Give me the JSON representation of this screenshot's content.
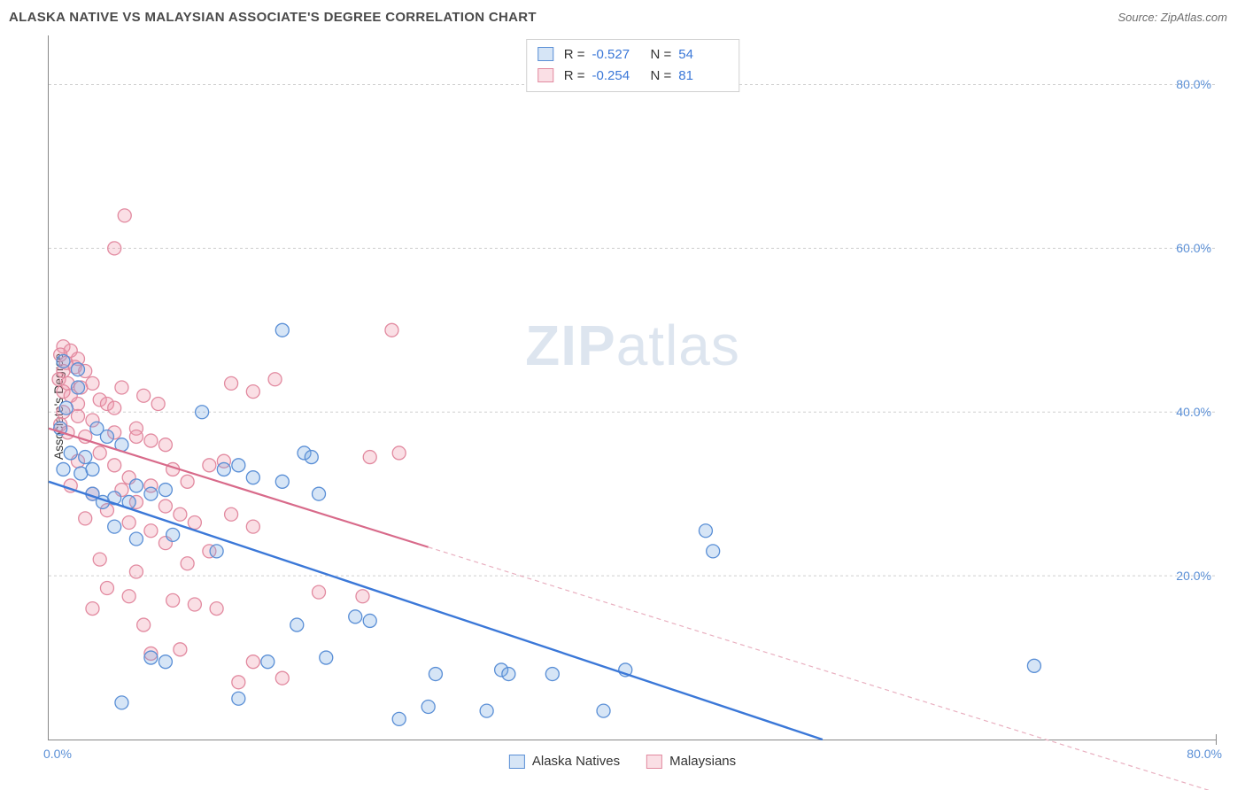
{
  "header": {
    "title": "ALASKA NATIVE VS MALAYSIAN ASSOCIATE'S DEGREE CORRELATION CHART",
    "source_prefix": "Source: ",
    "source_name": "ZipAtlas.com"
  },
  "watermark": {
    "zip": "ZIP",
    "atlas": "atlas"
  },
  "chart": {
    "type": "scatter",
    "ylabel": "Associate's Degree",
    "xlim": [
      0,
      80
    ],
    "ylim": [
      0,
      86
    ],
    "y_ticks": [
      20,
      40,
      60,
      80
    ],
    "y_tick_labels": [
      "20.0%",
      "40.0%",
      "60.0%",
      "80.0%"
    ],
    "x_tick_left": "0.0%",
    "x_tick_right": "80.0%",
    "background_color": "#ffffff",
    "grid_color": "#cfcfcf",
    "axis_color": "#888888",
    "tick_label_color": "#5a8fd6",
    "marker_radius": 7.5,
    "marker_stroke_width": 1.3,
    "series": {
      "alaska": {
        "label": "Alaska Natives",
        "fill": "rgba(120,170,225,0.30)",
        "stroke": "#5a8fd6",
        "r_value": "-0.527",
        "n_value": "54",
        "trend": {
          "x1": 0,
          "y1": 31.5,
          "x2": 53,
          "y2": 0,
          "color": "#3b78d8",
          "width": 2.4,
          "dash": "none"
        },
        "points": [
          [
            1.0,
            46.2
          ],
          [
            2.0,
            43.0
          ],
          [
            2.0,
            45.2
          ],
          [
            1.2,
            40.5
          ],
          [
            0.8,
            38.0
          ],
          [
            1.5,
            35.0
          ],
          [
            2.5,
            34.5
          ],
          [
            1.0,
            33.0
          ],
          [
            2.2,
            32.5
          ],
          [
            3.0,
            30.0
          ],
          [
            3.7,
            29.0
          ],
          [
            4.5,
            29.5
          ],
          [
            5.5,
            29.0
          ],
          [
            3.3,
            38.0
          ],
          [
            4.0,
            37.0
          ],
          [
            5.0,
            36.0
          ],
          [
            3.0,
            33.0
          ],
          [
            6.0,
            31.0
          ],
          [
            7.0,
            30.0
          ],
          [
            8.0,
            30.5
          ],
          [
            4.5,
            26.0
          ],
          [
            6.0,
            24.5
          ],
          [
            8.5,
            25.0
          ],
          [
            10.5,
            40.0
          ],
          [
            16.0,
            50.0
          ],
          [
            12.0,
            33.0
          ],
          [
            13.0,
            33.5
          ],
          [
            14.0,
            32.0
          ],
          [
            17.5,
            35.0
          ],
          [
            16.0,
            31.5
          ],
          [
            18.0,
            34.5
          ],
          [
            18.5,
            30.0
          ],
          [
            7.0,
            10.0
          ],
          [
            8.0,
            9.5
          ],
          [
            15.0,
            9.5
          ],
          [
            11.5,
            23.0
          ],
          [
            5.0,
            4.5
          ],
          [
            21.0,
            15.0
          ],
          [
            26.0,
            4.0
          ],
          [
            17.0,
            14.0
          ],
          [
            22.0,
            14.5
          ],
          [
            19.0,
            10.0
          ],
          [
            24.0,
            2.5
          ],
          [
            26.5,
            8.0
          ],
          [
            30.0,
            3.5
          ],
          [
            31.0,
            8.5
          ],
          [
            31.5,
            8.0
          ],
          [
            34.5,
            8.0
          ],
          [
            38.0,
            3.5
          ],
          [
            39.5,
            8.5
          ],
          [
            45.0,
            25.5
          ],
          [
            45.5,
            23.0
          ],
          [
            67.5,
            9.0
          ],
          [
            13.0,
            5.0
          ]
        ]
      },
      "malaysian": {
        "label": "Malaysians",
        "fill": "rgba(240,150,170,0.30)",
        "stroke": "#e28aa0",
        "r_value": "-0.254",
        "n_value": "81",
        "trend_solid": {
          "x1": 0,
          "y1": 38.0,
          "x2": 26,
          "y2": 23.5,
          "color": "#d86a8a",
          "width": 2.2
        },
        "trend_dash": {
          "x1": 26,
          "y1": 23.5,
          "x2": 80,
          "y2": -6.5,
          "color": "#e9b0c0",
          "width": 1.2,
          "dash": "5 4"
        },
        "points": [
          [
            5.2,
            64.0
          ],
          [
            4.5,
            60.0
          ],
          [
            23.5,
            50.0
          ],
          [
            1.0,
            48.0
          ],
          [
            1.5,
            47.5
          ],
          [
            0.8,
            47.0
          ],
          [
            1.2,
            46.0
          ],
          [
            2.0,
            46.5
          ],
          [
            1.0,
            45.0
          ],
          [
            1.8,
            45.5
          ],
          [
            2.5,
            45.0
          ],
          [
            0.7,
            44.0
          ],
          [
            1.3,
            43.5
          ],
          [
            2.2,
            43.0
          ],
          [
            3.0,
            43.5
          ],
          [
            1.0,
            42.5
          ],
          [
            1.5,
            42.0
          ],
          [
            2.0,
            41.0
          ],
          [
            3.5,
            41.5
          ],
          [
            4.0,
            41.0
          ],
          [
            4.5,
            40.5
          ],
          [
            1.0,
            40.0
          ],
          [
            2.0,
            39.5
          ],
          [
            3.0,
            39.0
          ],
          [
            0.8,
            38.5
          ],
          [
            1.3,
            37.5
          ],
          [
            2.5,
            37.0
          ],
          [
            4.5,
            37.5
          ],
          [
            6.0,
            38.0
          ],
          [
            5.0,
            43.0
          ],
          [
            6.5,
            42.0
          ],
          [
            7.5,
            41.0
          ],
          [
            6.0,
            37.0
          ],
          [
            7.0,
            36.5
          ],
          [
            8.0,
            36.0
          ],
          [
            3.5,
            35.0
          ],
          [
            4.5,
            33.5
          ],
          [
            2.0,
            34.0
          ],
          [
            5.5,
            32.0
          ],
          [
            5.0,
            30.5
          ],
          [
            7.0,
            31.0
          ],
          [
            8.5,
            33.0
          ],
          [
            9.5,
            31.5
          ],
          [
            6.0,
            29.0
          ],
          [
            8.0,
            28.5
          ],
          [
            9.0,
            27.5
          ],
          [
            1.5,
            31.0
          ],
          [
            3.0,
            30.0
          ],
          [
            4.0,
            28.0
          ],
          [
            2.5,
            27.0
          ],
          [
            5.5,
            26.5
          ],
          [
            7.0,
            25.5
          ],
          [
            3.5,
            22.0
          ],
          [
            6.0,
            20.5
          ],
          [
            9.5,
            21.5
          ],
          [
            11.0,
            23.0
          ],
          [
            10.0,
            26.5
          ],
          [
            8.0,
            24.0
          ],
          [
            12.5,
            43.5
          ],
          [
            14.0,
            42.5
          ],
          [
            15.5,
            44.0
          ],
          [
            11.0,
            33.5
          ],
          [
            12.0,
            34.0
          ],
          [
            12.5,
            27.5
          ],
          [
            14.0,
            26.0
          ],
          [
            4.0,
            18.5
          ],
          [
            5.5,
            17.5
          ],
          [
            8.5,
            17.0
          ],
          [
            10.0,
            16.5
          ],
          [
            11.5,
            16.0
          ],
          [
            6.5,
            14.0
          ],
          [
            3.0,
            16.0
          ],
          [
            7.0,
            10.5
          ],
          [
            9.0,
            11.0
          ],
          [
            14.0,
            9.5
          ],
          [
            13.0,
            7.0
          ],
          [
            18.5,
            18.0
          ],
          [
            21.5,
            17.5
          ],
          [
            22.0,
            34.5
          ],
          [
            24.0,
            35.0
          ],
          [
            16.0,
            7.5
          ]
        ]
      }
    },
    "top_legend_labels": {
      "r": "R =",
      "n": "N ="
    }
  }
}
